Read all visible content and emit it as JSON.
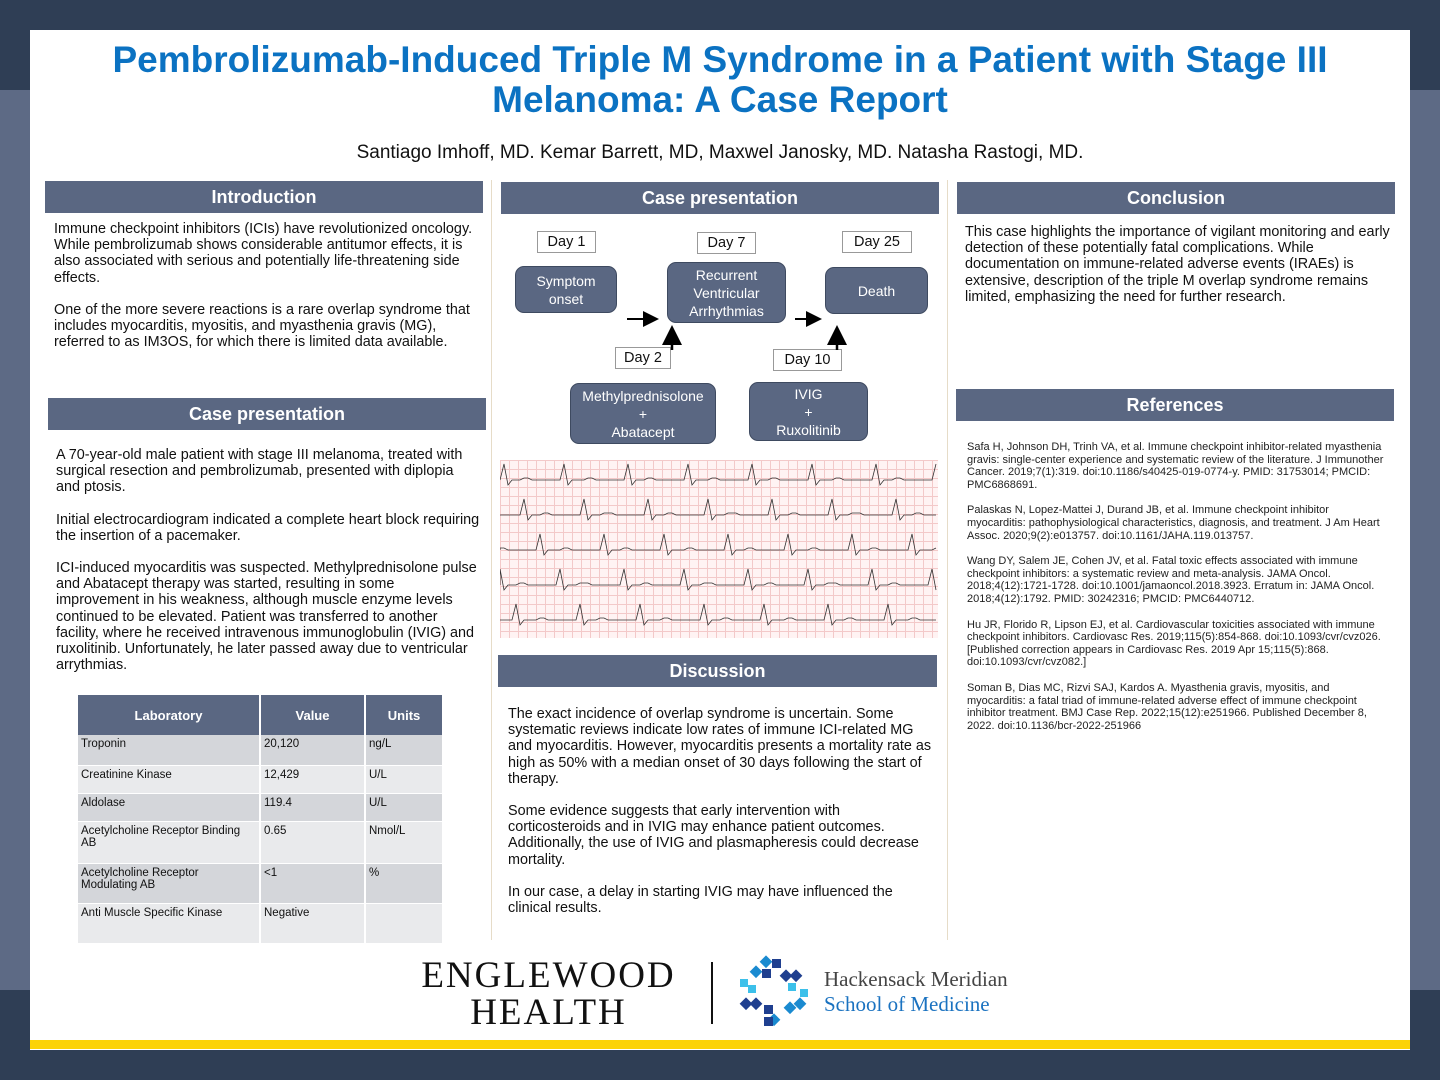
{
  "title": "Pembrolizumab-Induced Triple M Syndrome in a Patient with Stage III Melanoma: A Case Report",
  "authors": "Santiago Imhoff, MD. Kemar Barrett, MD, Maxwel Janosky, MD. Natasha Rastogi, MD.",
  "colors": {
    "title": "#0b72c2",
    "header": "#5a6782",
    "accent_bar": "#fcd307",
    "background": "#2f3e55"
  },
  "introduction": {
    "heading": "Introduction",
    "paragraphs": [
      "Immune checkpoint inhibitors (ICIs) have revolutionized oncology. While pembrolizumab shows considerable antitumor effects, it is also associated with serious and potentially life-threatening side effects.",
      "One of the more severe reactions is a rare overlap syndrome that includes myocarditis, myositis, and myasthenia gravis (MG), referred to as IM3OS, for which there is limited data available."
    ]
  },
  "case_left": {
    "heading": "Case presentation",
    "paragraphs": [
      "A 70-year-old male patient with stage III melanoma, treated with surgical resection and pembrolizumab, presented with diplopia and ptosis.",
      "Initial electrocardiogram indicated a complete heart block requiring the insertion of a pacemaker.",
      "ICI-induced myocarditis was suspected. Methylprednisolone pulse and Abatacept therapy was started, resulting in some improvement in his weakness, although muscle enzyme levels continued to be elevated. Patient was transferred to another facility, where he received intravenous immunoglobulin (IVIG) and ruxolitinib. Unfortunately, he later passed away due to ventricular arrythmias."
    ]
  },
  "lab_table": {
    "headers": [
      "Laboratory",
      "Value",
      "Units"
    ],
    "rows": [
      [
        "Troponin",
        "20,120",
        " ng/L"
      ],
      [
        "Creatinine Kinase",
        "12,429",
        "U/L"
      ],
      [
        "Aldolase",
        "119.4",
        "U/L"
      ],
      [
        "Acetylcholine Receptor Binding AB",
        "0.65",
        "Nmol/L"
      ],
      [
        "Acetylcholine Receptor Modulating AB",
        "<1",
        "%"
      ],
      [
        "Anti Muscle Specific Kinase",
        "Negative",
        ""
      ]
    ]
  },
  "case_mid": {
    "heading": "Case presentation",
    "timeline": {
      "day1": "Day 1",
      "day7": "Day 7",
      "day25": "Day 25",
      "day2": "Day 2",
      "day10": "Day 10",
      "symptom": "Symptom onset",
      "recurrent": "Recurrent Ventricular Arrhythmias",
      "death": "Death",
      "methyl": "Methylprednisolone",
      "plus1": "+",
      "abatacept": "Abatacept",
      "ivig": "IVIG",
      "plus2": "+",
      "ruxolitinib": "Ruxolitinib"
    }
  },
  "discussion": {
    "heading": "Discussion",
    "paragraphs": [
      "The exact incidence of overlap syndrome is uncertain. Some systematic reviews indicate low rates of immune ICI-related MG and myocarditis. However, myocarditis presents a mortality rate as high as 50% with a median onset of 30 days following the start of therapy.",
      "Some evidence suggests that early intervention with corticosteroids and in IVIG may enhance patient outcomes. Additionally, the use of IVIG and plasmapheresis could decrease mortality.",
      "In our case, a delay in starting IVIG may have influenced the clinical results."
    ]
  },
  "conclusion": {
    "heading": "Conclusion",
    "text": "This case highlights the importance of vigilant monitoring and early detection of these potentially fatal complications. While documentation on immune-related adverse events (IRAEs) is extensive, description of the triple M overlap syndrome remains limited, emphasizing the need for further research."
  },
  "references": {
    "heading": "References",
    "items": [
      "Safa H, Johnson DH, Trinh VA, et al. Immune checkpoint inhibitor-related myasthenia gravis: single-center experience and systematic review of the literature. J Immunother Cancer. 2019;7(1):319. doi:10.1186/s40425-019-0774-y. PMID: 31753014; PMCID: PMC6868691.",
      "Palaskas N, Lopez-Mattei J, Durand JB, et al. Immune checkpoint inhibitor myocarditis: pathophysiological characteristics, diagnosis, and treatment. J Am Heart Assoc. 2020;9(2):e013757. doi:10.1161/JAHA.119.013757.",
      "Wang DY, Salem JE, Cohen JV, et al. Fatal toxic effects associated with immune checkpoint inhibitors: a systematic review and meta-analysis. JAMA Oncol. 2018;4(12):1721-1728. doi:10.1001/jamaoncol.2018.3923. Erratum in: JAMA Oncol. 2018;4(12):1792. PMID: 30242316; PMCID: PMC6440712.",
      "Hu JR, Florido R, Lipson EJ, et al. Cardiovascular toxicities associated with immune checkpoint inhibitors. Cardiovasc Res. 2019;115(5):854-868. doi:10.1093/cvr/cvz026. [Published correction appears in Cardiovasc Res. 2019 Apr 15;115(5):868. doi:10.1093/cvr/cvz082.]",
      "Soman B, Dias MC, Rizvi SAJ, Kardos A. Myasthenia gravis, myositis, and myocarditis: a fatal triad of immune-related adverse effect of immune checkpoint inhibitor treatment. BMJ Case Rep. 2022;15(12):e251966. Published December 8, 2022. doi:10.1136/bcr-2022-251966"
    ]
  },
  "logos": {
    "englewood_line1": "ENGLEWOOD",
    "englewood_line2": "HEALTH",
    "hm_line1": "Hackensack Meridian",
    "hm_line2": "School of Medicine"
  }
}
